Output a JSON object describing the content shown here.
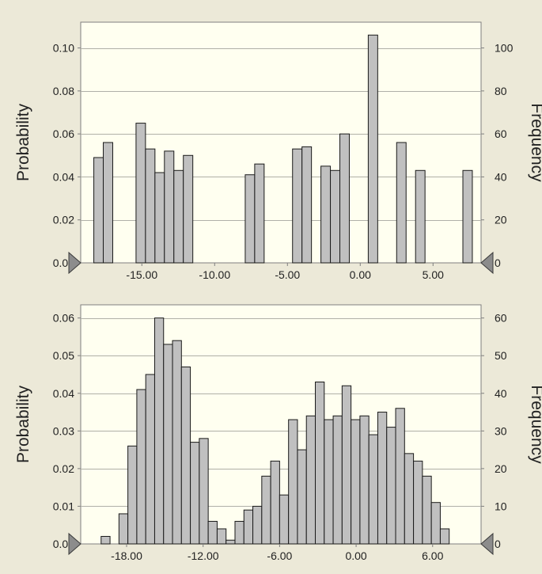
{
  "chart_data": [
    {
      "type": "bar",
      "ylabel": "Probability",
      "y2label": "Frequency",
      "xlim": [
        -19.2,
        8.3
      ],
      "ylim": [
        0,
        0.112
      ],
      "y2lim": [
        0,
        112
      ],
      "xticks": [
        -15,
        -10,
        -5,
        0,
        5
      ],
      "xtick_labels": [
        "-15.00",
        "-10.00",
        "-5.00",
        "0.00",
        "5.00"
      ],
      "yticks": [
        0,
        0.02,
        0.04,
        0.06,
        0.08,
        0.1
      ],
      "ytick_labels": [
        "0.00",
        "0.02",
        "0.04",
        "0.06",
        "0.08",
        "0.10"
      ],
      "y2ticks": [
        0,
        20,
        40,
        60,
        80,
        100
      ],
      "y2tick_labels": [
        "0",
        "20",
        "40",
        "60",
        "80",
        "100"
      ],
      "grid": true,
      "bin_width": 0.65,
      "x": [
        -18.3,
        -17.65,
        -15.4,
        -14.75,
        -14.1,
        -13.45,
        -12.8,
        -12.15,
        -7.9,
        -7.25,
        -4.65,
        -4.0,
        -2.7,
        -2.05,
        -1.4,
        0.55,
        2.5,
        3.8,
        7.05
      ],
      "values": [
        0.049,
        0.056,
        0.065,
        0.053,
        0.042,
        0.052,
        0.043,
        0.05,
        0.041,
        0.046,
        0.053,
        0.054,
        0.045,
        0.043,
        0.06,
        0.106,
        0.056,
        0.043,
        0.043
      ]
    },
    {
      "type": "bar",
      "ylabel": "Probability",
      "y2label": "Frequency",
      "xlim": [
        -21.6,
        9.8
      ],
      "ylim": [
        0,
        0.0635
      ],
      "y2lim": [
        0,
        63.5
      ],
      "xticks": [
        -18,
        -12,
        -6,
        0,
        6
      ],
      "xtick_labels": [
        "-18.00",
        "-12.00",
        "-6.00",
        "0.00",
        "6.00"
      ],
      "yticks": [
        0,
        0.01,
        0.02,
        0.03,
        0.04,
        0.05,
        0.06
      ],
      "ytick_labels": [
        "0.00",
        "0.01",
        "0.02",
        "0.03",
        "0.04",
        "0.05",
        "0.06"
      ],
      "y2ticks": [
        0,
        10,
        20,
        30,
        40,
        50,
        60
      ],
      "y2tick_labels": [
        "0",
        "10",
        "20",
        "30",
        "40",
        "50",
        "60"
      ],
      "grid": true,
      "bin_start": -20.0,
      "bin_width": 0.7,
      "values": [
        0.002,
        0,
        0.008,
        0.026,
        0.041,
        0.045,
        0.06,
        0.053,
        0.054,
        0.047,
        0.027,
        0.028,
        0.006,
        0.004,
        0.001,
        0.006,
        0.009,
        0.01,
        0.018,
        0.022,
        0.013,
        0.033,
        0.025,
        0.034,
        0.043,
        0.033,
        0.034,
        0.042,
        0.033,
        0.034,
        0.029,
        0.035,
        0.031,
        0.036,
        0.024,
        0.022,
        0.018,
        0.011,
        0.004
      ]
    }
  ]
}
